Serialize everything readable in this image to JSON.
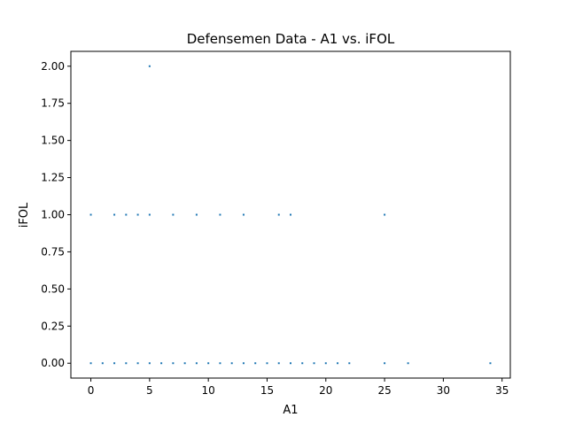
{
  "chart_data": {
    "type": "scatter",
    "title": "Defensemen Data - A1 vs. iFOL",
    "xlabel": "A1",
    "ylabel": "iFOL",
    "xlim": [
      -1.7,
      35.7
    ],
    "ylim": [
      -0.1,
      2.1
    ],
    "xticks": [
      0,
      5,
      10,
      15,
      20,
      25,
      30,
      35
    ],
    "xtick_labels": [
      "0",
      "5",
      "10",
      "15",
      "20",
      "25",
      "30",
      "35"
    ],
    "yticks": [
      0.0,
      0.25,
      0.5,
      0.75,
      1.0,
      1.25,
      1.5,
      1.75,
      2.0
    ],
    "ytick_labels": [
      "0.00",
      "0.25",
      "0.50",
      "0.75",
      "1.00",
      "1.25",
      "1.50",
      "1.75",
      "2.00"
    ],
    "grid": false,
    "marker_color": "#1f77b4",
    "points": [
      {
        "x": 0,
        "y": 0
      },
      {
        "x": 1,
        "y": 0
      },
      {
        "x": 2,
        "y": 0
      },
      {
        "x": 3,
        "y": 0
      },
      {
        "x": 4,
        "y": 0
      },
      {
        "x": 5,
        "y": 0
      },
      {
        "x": 6,
        "y": 0
      },
      {
        "x": 7,
        "y": 0
      },
      {
        "x": 8,
        "y": 0
      },
      {
        "x": 9,
        "y": 0
      },
      {
        "x": 10,
        "y": 0
      },
      {
        "x": 11,
        "y": 0
      },
      {
        "x": 12,
        "y": 0
      },
      {
        "x": 13,
        "y": 0
      },
      {
        "x": 14,
        "y": 0
      },
      {
        "x": 15,
        "y": 0
      },
      {
        "x": 16,
        "y": 0
      },
      {
        "x": 17,
        "y": 0
      },
      {
        "x": 18,
        "y": 0
      },
      {
        "x": 19,
        "y": 0
      },
      {
        "x": 20,
        "y": 0
      },
      {
        "x": 21,
        "y": 0
      },
      {
        "x": 22,
        "y": 0
      },
      {
        "x": 25,
        "y": 0
      },
      {
        "x": 27,
        "y": 0
      },
      {
        "x": 34,
        "y": 0
      },
      {
        "x": 0,
        "y": 1
      },
      {
        "x": 2,
        "y": 1
      },
      {
        "x": 3,
        "y": 1
      },
      {
        "x": 4,
        "y": 1
      },
      {
        "x": 5,
        "y": 1
      },
      {
        "x": 7,
        "y": 1
      },
      {
        "x": 9,
        "y": 1
      },
      {
        "x": 11,
        "y": 1
      },
      {
        "x": 13,
        "y": 1
      },
      {
        "x": 16,
        "y": 1
      },
      {
        "x": 17,
        "y": 1
      },
      {
        "x": 25,
        "y": 1
      },
      {
        "x": 5,
        "y": 2
      }
    ]
  }
}
